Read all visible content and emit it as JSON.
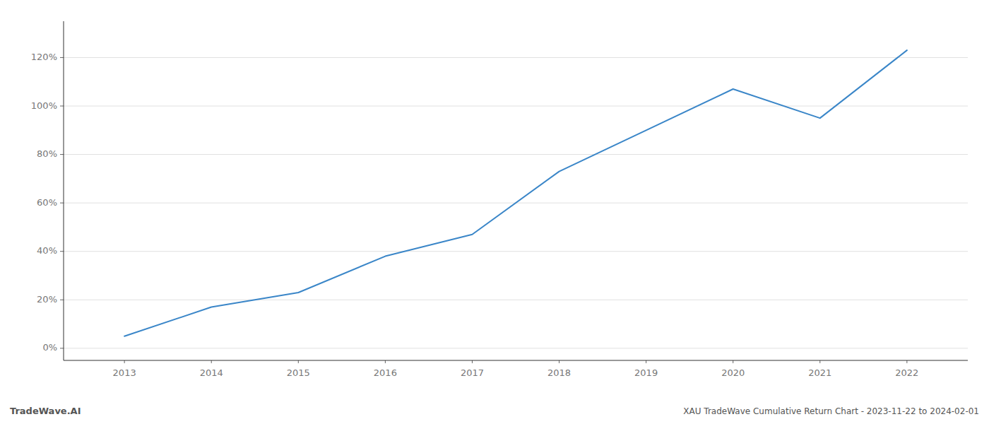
{
  "chart_data": {
    "type": "line",
    "title": "XAU TradeWave Cumulative Return Chart - 2023-11-22 to 2024-02-01",
    "annotations": [
      "TradeWave.AI"
    ],
    "x": [
      2013,
      2014,
      2015,
      2016,
      2017,
      2018,
      2019,
      2020,
      2021,
      2022
    ],
    "values": [
      5,
      17,
      23,
      38,
      47,
      73,
      90,
      107,
      95,
      123
    ],
    "color": "#3a86c8",
    "xlim": [
      2012.3,
      2022.7
    ],
    "ylim": [
      -5,
      135
    ],
    "xticks": [
      2013,
      2014,
      2015,
      2016,
      2017,
      2018,
      2019,
      2020,
      2021,
      2022
    ],
    "yticks": [
      {
        "value": 0,
        "label": "0%"
      },
      {
        "value": 20,
        "label": "20%"
      },
      {
        "value": 40,
        "label": "40%"
      },
      {
        "value": 60,
        "label": "60%"
      },
      {
        "value": 80,
        "label": "80%"
      },
      {
        "value": 100,
        "label": "100%"
      },
      {
        "value": 120,
        "label": "120%"
      }
    ],
    "grid": true
  }
}
